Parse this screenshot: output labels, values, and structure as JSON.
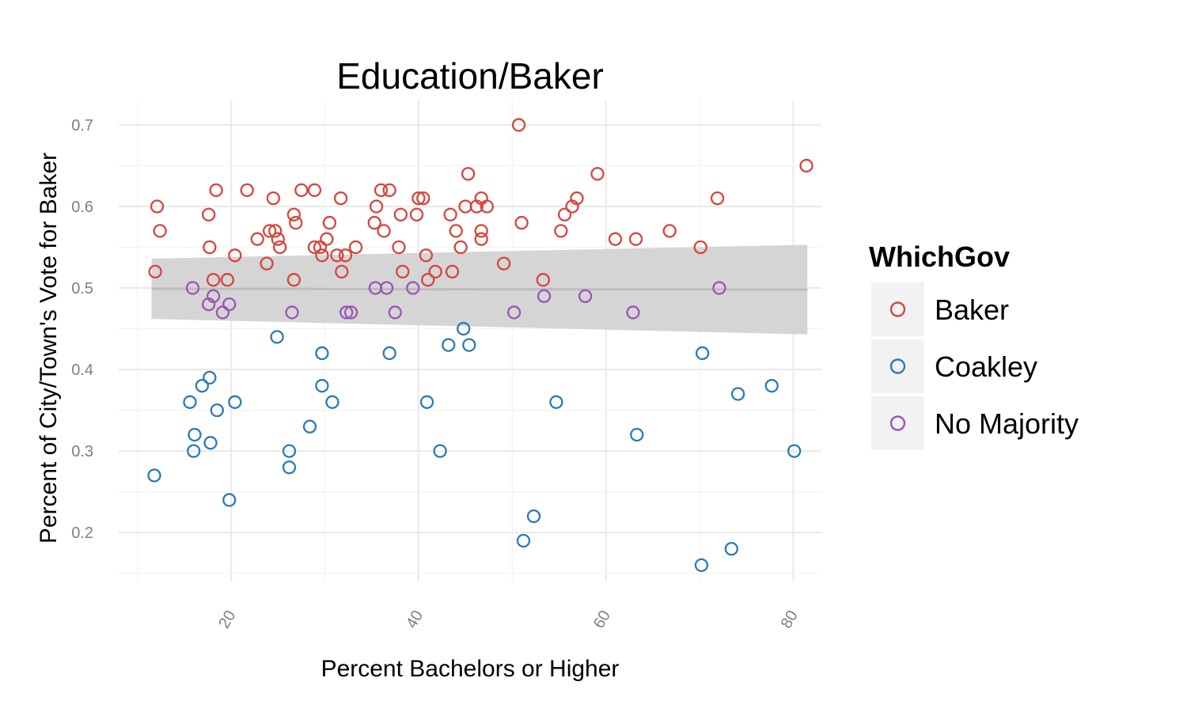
{
  "chart_data": {
    "type": "scatter",
    "title": "Education/Baker",
    "xlabel": "Percent Bachelors or Higher",
    "ylabel": "Percent of City/Town's Vote for Baker",
    "xlim": [
      8,
      83
    ],
    "ylim": [
      0.14,
      0.73
    ],
    "x_ticks": [
      20,
      40,
      60,
      80
    ],
    "y_ticks": [
      0.2,
      0.3,
      0.4,
      0.5,
      0.6,
      0.7
    ],
    "x_tick_labels": [
      "20",
      "40",
      "60",
      "80"
    ],
    "y_tick_labels": [
      "0.2",
      "0.3",
      "0.4",
      "0.5",
      "0.6",
      "0.7"
    ],
    "grid": true,
    "legend_position": "right",
    "legend_title": "WhichGov",
    "smooth": {
      "method": "linear",
      "x": [
        11.5,
        81.5
      ],
      "y": [
        0.499,
        0.498
      ],
      "lower": [
        0.462,
        0.443
      ],
      "upper": [
        0.536,
        0.553
      ],
      "color": "#bdbdbd",
      "ribbon_color": "#d3d3d3"
    },
    "series": [
      {
        "name": "Baker",
        "color": "#d6453c",
        "points": [
          [
            11.9,
            0.52
          ],
          [
            12.1,
            0.6
          ],
          [
            12.4,
            0.57
          ],
          [
            17.6,
            0.59
          ],
          [
            17.7,
            0.55
          ],
          [
            18.1,
            0.51
          ],
          [
            18.4,
            0.62
          ],
          [
            19.6,
            0.51
          ],
          [
            20.4,
            0.54
          ],
          [
            21.7,
            0.62
          ],
          [
            22.8,
            0.56
          ],
          [
            23.8,
            0.53
          ],
          [
            24.1,
            0.57
          ],
          [
            24.5,
            0.61
          ],
          [
            24.7,
            0.57
          ],
          [
            25.0,
            0.56
          ],
          [
            25.2,
            0.55
          ],
          [
            26.7,
            0.59
          ],
          [
            26.9,
            0.58
          ],
          [
            26.7,
            0.51
          ],
          [
            27.5,
            0.62
          ],
          [
            28.9,
            0.55
          ],
          [
            28.9,
            0.62
          ],
          [
            29.5,
            0.55
          ],
          [
            29.7,
            0.54
          ],
          [
            30.2,
            0.56
          ],
          [
            30.5,
            0.58
          ],
          [
            31.3,
            0.54
          ],
          [
            31.7,
            0.61
          ],
          [
            31.8,
            0.52
          ],
          [
            32.2,
            0.54
          ],
          [
            33.3,
            0.55
          ],
          [
            35.3,
            0.58
          ],
          [
            35.5,
            0.6
          ],
          [
            36.0,
            0.62
          ],
          [
            36.3,
            0.57
          ],
          [
            36.9,
            0.62
          ],
          [
            38.1,
            0.59
          ],
          [
            37.9,
            0.55
          ],
          [
            38.3,
            0.52
          ],
          [
            39.8,
            0.59
          ],
          [
            40.0,
            0.61
          ],
          [
            40.5,
            0.61
          ],
          [
            40.8,
            0.54
          ],
          [
            41.0,
            0.51
          ],
          [
            41.8,
            0.52
          ],
          [
            43.4,
            0.59
          ],
          [
            43.6,
            0.52
          ],
          [
            44.0,
            0.57
          ],
          [
            44.5,
            0.55
          ],
          [
            45.0,
            0.6
          ],
          [
            45.3,
            0.64
          ],
          [
            46.2,
            0.6
          ],
          [
            46.7,
            0.61
          ],
          [
            46.7,
            0.57
          ],
          [
            46.7,
            0.56
          ],
          [
            47.3,
            0.6
          ],
          [
            49.1,
            0.53
          ],
          [
            50.7,
            0.7
          ],
          [
            51.0,
            0.58
          ],
          [
            53.3,
            0.51
          ],
          [
            55.2,
            0.57
          ],
          [
            55.6,
            0.59
          ],
          [
            56.4,
            0.6
          ],
          [
            56.9,
            0.61
          ],
          [
            59.1,
            0.64
          ],
          [
            61.0,
            0.56
          ],
          [
            63.2,
            0.56
          ],
          [
            66.8,
            0.57
          ],
          [
            70.1,
            0.55
          ],
          [
            71.9,
            0.61
          ],
          [
            81.4,
            0.65
          ]
        ]
      },
      {
        "name": "Coakley",
        "color": "#2b7bb2",
        "points": [
          [
            11.8,
            0.27
          ],
          [
            15.6,
            0.36
          ],
          [
            16.0,
            0.3
          ],
          [
            16.1,
            0.32
          ],
          [
            16.9,
            0.38
          ],
          [
            17.7,
            0.39
          ],
          [
            17.8,
            0.31
          ],
          [
            18.5,
            0.35
          ],
          [
            19.8,
            0.24
          ],
          [
            20.4,
            0.36
          ],
          [
            24.9,
            0.44
          ],
          [
            26.2,
            0.3
          ],
          [
            26.2,
            0.28
          ],
          [
            28.4,
            0.33
          ],
          [
            29.7,
            0.42
          ],
          [
            29.7,
            0.38
          ],
          [
            30.8,
            0.36
          ],
          [
            36.9,
            0.42
          ],
          [
            40.9,
            0.36
          ],
          [
            42.3,
            0.3
          ],
          [
            43.2,
            0.43
          ],
          [
            44.8,
            0.45
          ],
          [
            45.4,
            0.43
          ],
          [
            51.2,
            0.19
          ],
          [
            52.3,
            0.22
          ],
          [
            54.7,
            0.36
          ],
          [
            63.3,
            0.32
          ],
          [
            70.2,
            0.16
          ],
          [
            70.3,
            0.42
          ],
          [
            73.4,
            0.18
          ],
          [
            74.1,
            0.37
          ],
          [
            77.7,
            0.38
          ],
          [
            80.1,
            0.3
          ]
        ]
      },
      {
        "name": "No Majority",
        "color": "#9a55b5",
        "points": [
          [
            15.9,
            0.5
          ],
          [
            17.6,
            0.48
          ],
          [
            18.1,
            0.49
          ],
          [
            19.1,
            0.47
          ],
          [
            19.8,
            0.48
          ],
          [
            26.5,
            0.47
          ],
          [
            32.3,
            0.47
          ],
          [
            32.8,
            0.47
          ],
          [
            35.4,
            0.5
          ],
          [
            36.6,
            0.5
          ],
          [
            37.5,
            0.47
          ],
          [
            39.4,
            0.5
          ],
          [
            50.2,
            0.47
          ],
          [
            53.4,
            0.49
          ],
          [
            57.8,
            0.49
          ],
          [
            62.9,
            0.47
          ],
          [
            72.1,
            0.5
          ]
        ]
      }
    ]
  }
}
